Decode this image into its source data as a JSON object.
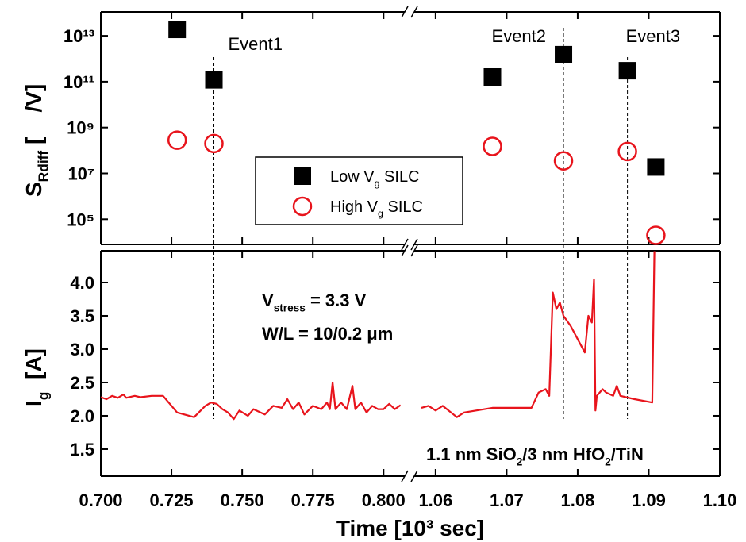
{
  "chart_data": [
    {
      "type": "scatter",
      "ylabel": [
        {
          "text": "S"
        },
        {
          "text": "Rdiff",
          "sub": true
        },
        {
          "text": " [    /V]"
        }
      ],
      "yscale": "log",
      "ylim": [
        8000,
        110000000000000.0
      ],
      "yticks": [
        {
          "value": 100000.0,
          "label": "10⁵"
        },
        {
          "value": 10000000.0,
          "label": "10⁷"
        },
        {
          "value": 1000000000.0,
          "label": "10⁹"
        },
        {
          "value": 100000000000.0,
          "label": "10¹¹"
        },
        {
          "value": 10000000000000.0,
          "label": "10¹³"
        }
      ],
      "series": [
        {
          "name": [
            {
              "text": "Low V"
            },
            {
              "text": "g",
              "sub": true
            },
            {
              "text": " SILC"
            }
          ],
          "color": "#000000",
          "marker": "square",
          "x": [
            0.727,
            0.74,
            1.068,
            1.078,
            1.087,
            1.091
          ],
          "y": [
            19000000000000.0,
            120000000000.0,
            160000000000.0,
            1500000000000.0,
            300000000000.0,
            19000000.0
          ]
        },
        {
          "name": [
            {
              "text": "High V"
            },
            {
              "text": "g",
              "sub": true
            },
            {
              "text": " SILC"
            }
          ],
          "color": "#e8141c",
          "marker": "circle",
          "x": [
            0.727,
            0.74,
            1.068,
            1.078,
            1.087,
            1.091
          ],
          "y": [
            280000000.0,
            200000000.0,
            150000000.0,
            35000000.0,
            90000000.0,
            20000.0
          ]
        }
      ],
      "events": [
        {
          "x": 0.74,
          "label": "Event1"
        },
        {
          "x": 1.078,
          "label": "Event2"
        },
        {
          "x": 1.087,
          "label": "Event3"
        }
      ],
      "legend": "lower-center"
    },
    {
      "type": "line",
      "xlabel": "Time [10³ sec]",
      "ylabel": [
        {
          "text": "I"
        },
        {
          "text": "g",
          "sub": true
        },
        {
          "text": "  [A]"
        }
      ],
      "ylim": [
        1.095,
        4.476
      ],
      "yticks": [
        1.5,
        {
          "value": 2,
          "label": "2.0"
        },
        2.5,
        {
          "value": 3,
          "label": "3.0"
        },
        3.5,
        {
          "value": 4,
          "label": "4.0"
        }
      ],
      "xsegments": [
        {
          "xlim": [
            0.7,
            0.8075
          ],
          "xticks": [
            {
              "value": 0.7,
              "label": "0.700"
            },
            {
              "value": 0.725,
              "label": "0.725"
            },
            {
              "value": 0.75,
              "label": "0.750"
            },
            {
              "value": 0.775,
              "label": "0.775"
            },
            {
              "value": 0.8,
              "label": "0.800"
            }
          ]
        },
        {
          "xlim": [
            1.057,
            1.1
          ],
          "xticks": [
            1.06,
            1.07,
            1.08,
            1.09,
            {
              "value": 1.1,
              "label": "1.10"
            }
          ]
        }
      ],
      "series": [
        {
          "color": "#e8141c",
          "x": [
            0.7,
            0.702,
            0.704,
            0.706,
            0.708,
            0.709,
            0.712,
            0.714,
            0.718,
            0.722,
            0.727,
            0.733,
            0.737,
            0.739,
            0.741,
            0.743,
            0.745,
            0.747,
            0.749,
            0.752,
            0.754,
            0.758,
            0.761,
            0.764,
            0.766,
            0.768,
            0.77,
            0.772,
            0.775,
            0.778,
            0.78,
            0.781,
            0.782,
            0.783,
            0.785,
            0.787,
            0.789,
            0.79,
            0.792,
            0.794,
            0.796,
            0.798,
            0.8,
            0.802,
            0.804,
            0.806,
            null,
            1.058,
            1.059,
            1.06,
            1.061,
            1.063,
            1.064,
            1.068,
            1.0735,
            1.0745,
            1.0755,
            1.076,
            1.0765,
            1.077,
            1.0775,
            1.078,
            1.079,
            1.081,
            1.0815,
            1.082,
            1.0823,
            1.0825,
            1.0827,
            1.0835,
            1.084,
            1.085,
            1.0855,
            1.086,
            1.088,
            1.0905,
            1.0908
          ],
          "y": [
            2.28,
            2.25,
            2.3,
            2.27,
            2.32,
            2.27,
            2.3,
            2.28,
            2.3,
            2.3,
            2.05,
            1.98,
            2.15,
            2.2,
            2.18,
            2.1,
            2.05,
            1.95,
            2.08,
            2.0,
            2.1,
            2.02,
            2.15,
            2.12,
            2.25,
            2.1,
            2.2,
            2.02,
            2.15,
            2.1,
            2.2,
            2.1,
            2.5,
            2.1,
            2.2,
            2.1,
            2.45,
            2.1,
            2.2,
            2.05,
            2.15,
            2.1,
            2.1,
            2.18,
            2.1,
            2.16,
            null,
            2.12,
            2.15,
            2.08,
            2.15,
            1.98,
            2.05,
            2.12,
            2.12,
            2.35,
            2.4,
            2.3,
            3.85,
            3.6,
            3.7,
            3.5,
            3.35,
            2.95,
            3.5,
            3.4,
            4.05,
            2.08,
            2.3,
            2.4,
            2.35,
            2.3,
            2.45,
            2.3,
            2.25,
            2.2,
            4.47
          ]
        }
      ],
      "annotations": [
        [
          {
            "text": "V"
          },
          {
            "text": "stress",
            "sub": true
          },
          {
            "text": " = 3.3 V"
          }
        ],
        [
          {
            "text": "W/L = 10/0.2 μm"
          }
        ],
        [
          {
            "text": "1.1 nm SiO"
          },
          {
            "text": "2",
            "sub": true
          },
          {
            "text": "/3 nm HfO"
          },
          {
            "text": "2",
            "sub": true
          },
          {
            "text": "/TiN"
          }
        ]
      ]
    }
  ]
}
